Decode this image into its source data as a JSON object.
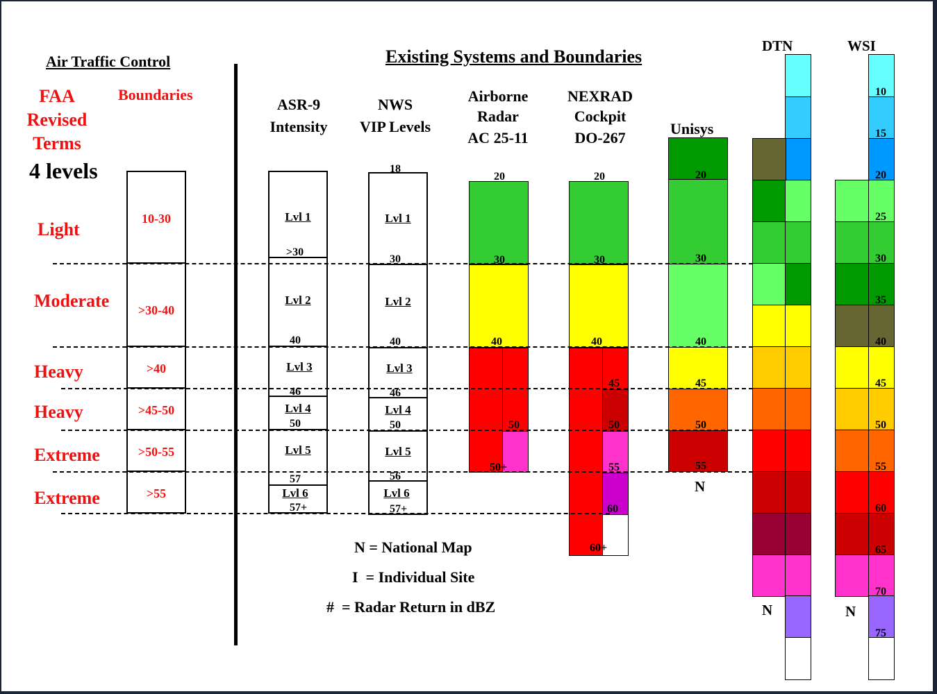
{
  "headings": {
    "atc": "Air Traffic Control",
    "existing": "Existing Systems and Boundaries"
  },
  "faa": {
    "line1": "FAA",
    "line2": "Revised",
    "line3": "Terms",
    "levels": "4 levels",
    "boundaries_label": "Boundaries",
    "terms": [
      "Light",
      "Moderate",
      "Heavy",
      "Heavy",
      "Extreme",
      "Extreme"
    ],
    "ranges": [
      "10-30",
      ">30-40",
      ">40",
      ">45-50",
      ">50-55",
      ">55"
    ]
  },
  "asr9": {
    "line1": "ASR-9",
    "line2": "Intensity",
    "levels": [
      "Lvl 1",
      "Lvl 2",
      "Lvl 3",
      "Lvl 4",
      "Lvl 5",
      "Lvl 6"
    ],
    "values": [
      ">30",
      "40",
      "46",
      "50",
      "57",
      "57+"
    ]
  },
  "nws": {
    "line1": "NWS",
    "line2": "VIP Levels",
    "levels": [
      "Lvl 1",
      "Lvl 2",
      "Lvl 3",
      "Lvl 4",
      "Lvl 5",
      "Lvl 6"
    ],
    "values": [
      "18",
      "30",
      "40",
      "46",
      "50",
      "56",
      "57+"
    ]
  },
  "airborne": {
    "line1": "Airborne",
    "line2": "Radar",
    "line3": "AC 25-11",
    "values": [
      "20",
      "30",
      "40",
      "50",
      "50+"
    ]
  },
  "nexrad": {
    "line1": "NEXRAD",
    "line2": "Cockpit",
    "line3": "DO-267",
    "values": [
      "20",
      "30",
      "40",
      "45",
      "50",
      "55",
      "60",
      "60+"
    ]
  },
  "unisys": {
    "title": "Unisys",
    "values": [
      "20",
      "30",
      "40",
      "45",
      "50",
      "55"
    ],
    "marker": "N"
  },
  "dtn": {
    "title": "DTN",
    "marker": "N"
  },
  "wsi": {
    "title": "WSI",
    "marker": "N",
    "values": [
      "10",
      "15",
      "20",
      "25",
      "30",
      "35",
      "40",
      "45",
      "50",
      "55",
      "60",
      "65",
      "70",
      "75"
    ]
  },
  "legend": {
    "n": "N = National Map",
    "i": "I  = Individual Site",
    "hash": "#  = Radar Return in dBZ"
  },
  "colors": {
    "cyan": "#66ffff",
    "sky": "#33ccff",
    "blue": "#0099ff",
    "olive": "#666633",
    "dark_green": "#009900",
    "green": "#33cc33",
    "light_green": "#66ff66",
    "yellow": "#ffff00",
    "gold": "#ffcc00",
    "orange": "#ff6600",
    "red": "#ff0000",
    "dark_red": "#cc0000",
    "maroon": "#990033",
    "magenta": "#ff33cc",
    "purple": "#cc00cc",
    "violet": "#9966ff",
    "white": "#ffffff"
  }
}
